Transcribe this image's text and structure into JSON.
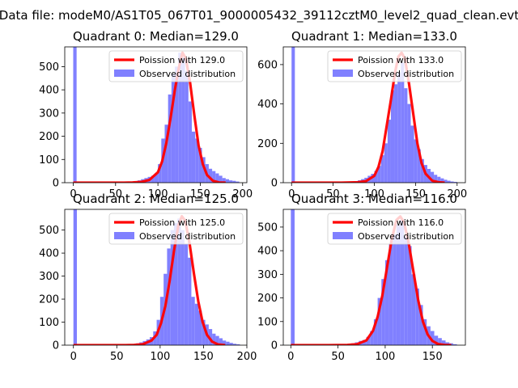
{
  "figure": {
    "suptitle": "Data file: modeM0/AS1T05_067T01_9000005432_39112cztM0_level2_quad_clean.evt"
  },
  "colors": {
    "poisson": "#ff0000",
    "observed": "#8080ff",
    "axes": "#000000"
  },
  "chart_data": [
    {
      "type": "bar",
      "title": "Quadrant 0: Median=129.0",
      "xlabel": "",
      "ylabel": "",
      "xlim": [
        -10,
        205
      ],
      "ylim": [
        0,
        585
      ],
      "xticks": [
        0,
        50,
        100,
        150,
        200
      ],
      "yticks": [
        0,
        100,
        200,
        300,
        400,
        500
      ],
      "grid": false,
      "legend_placement": "top-right",
      "legend": [
        "Poission with 129.0",
        "Observed distribution"
      ],
      "hist_bin_width": 4,
      "hist_x": [
        0,
        72,
        76,
        80,
        84,
        88,
        92,
        96,
        100,
        104,
        108,
        112,
        116,
        120,
        124,
        128,
        132,
        136,
        140,
        144,
        148,
        152,
        156,
        160,
        164,
        168,
        172,
        176,
        180,
        184,
        188,
        192
      ],
      "hist_y": [
        585,
        5,
        10,
        15,
        20,
        25,
        30,
        40,
        80,
        190,
        250,
        380,
        470,
        500,
        560,
        540,
        480,
        350,
        220,
        190,
        150,
        110,
        80,
        60,
        50,
        40,
        30,
        20,
        15,
        10,
        8,
        5
      ],
      "poisson_x": [
        0,
        20,
        40,
        60,
        70,
        80,
        90,
        100,
        105,
        110,
        115,
        120,
        125,
        129,
        133,
        138,
        143,
        148,
        153,
        158,
        165,
        172,
        180
      ],
      "poisson_y": [
        0,
        0,
        0,
        0,
        1,
        3,
        12,
        45,
        92,
        172,
        280,
        400,
        500,
        560,
        535,
        430,
        290,
        160,
        80,
        33,
        8,
        1,
        0
      ],
      "poisson_label": "Poission with 129.0",
      "observed_label": "Observed distribution"
    },
    {
      "type": "bar",
      "title": "Quadrant 1: Median=133.0",
      "xlabel": "",
      "ylabel": "",
      "xlim": [
        -10,
        210
      ],
      "ylim": [
        0,
        690
      ],
      "xticks": [
        0,
        50,
        100,
        150,
        200
      ],
      "yticks": [
        0,
        200,
        400,
        600
      ],
      "grid": false,
      "legend_placement": "top-right",
      "legend": [
        "Poission with 133.0",
        "Observed distribution"
      ],
      "hist_bin_width": 4,
      "hist_x": [
        0,
        72,
        76,
        80,
        84,
        88,
        92,
        96,
        100,
        104,
        108,
        112,
        116,
        120,
        124,
        128,
        132,
        136,
        140,
        144,
        148,
        152,
        156,
        160,
        164,
        168,
        172,
        176,
        180,
        184,
        188,
        192,
        196
      ],
      "hist_y": [
        690,
        4,
        8,
        12,
        18,
        25,
        35,
        45,
        60,
        85,
        140,
        200,
        320,
        470,
        500,
        560,
        610,
        480,
        400,
        290,
        220,
        170,
        120,
        90,
        70,
        55,
        40,
        30,
        22,
        15,
        10,
        6,
        4
      ],
      "poisson_x": [
        0,
        20,
        40,
        60,
        80,
        90,
        100,
        105,
        110,
        115,
        120,
        125,
        129,
        133,
        137,
        142,
        147,
        152,
        157,
        162,
        170,
        178,
        185
      ],
      "poisson_y": [
        0,
        0,
        0,
        0,
        2,
        8,
        35,
        80,
        160,
        290,
        420,
        560,
        640,
        660,
        630,
        500,
        350,
        200,
        100,
        45,
        10,
        2,
        0
      ],
      "poisson_label": "Poission with 133.0",
      "observed_label": "Observed distribution"
    },
    {
      "type": "bar",
      "title": "Quadrant 2: Median=125.0",
      "xlabel": "",
      "ylabel": "",
      "xlim": [
        -10,
        200
      ],
      "ylim": [
        0,
        590
      ],
      "xticks": [
        0,
        50,
        100,
        150,
        200
      ],
      "yticks": [
        0,
        100,
        200,
        300,
        400,
        500
      ],
      "grid": false,
      "legend_placement": "top-right",
      "legend": [
        "Poission with 125.0",
        "Observed distribution"
      ],
      "hist_bin_width": 4,
      "hist_x": [
        0,
        68,
        72,
        76,
        80,
        84,
        88,
        92,
        96,
        100,
        104,
        108,
        112,
        116,
        120,
        124,
        128,
        132,
        136,
        140,
        144,
        148,
        152,
        156,
        160,
        164,
        168,
        172,
        176,
        180,
        184,
        188
      ],
      "hist_y": [
        590,
        4,
        8,
        12,
        18,
        25,
        35,
        60,
        110,
        210,
        310,
        420,
        500,
        530,
        550,
        500,
        440,
        380,
        210,
        180,
        150,
        110,
        90,
        70,
        50,
        40,
        30,
        20,
        15,
        10,
        6,
        4
      ],
      "poisson_x": [
        0,
        20,
        40,
        60,
        70,
        80,
        90,
        96,
        101,
        106,
        111,
        116,
        121,
        125,
        129,
        134,
        139,
        144,
        149,
        154,
        160,
        167,
        175
      ],
      "poisson_y": [
        0,
        0,
        0,
        0,
        1,
        4,
        20,
        45,
        95,
        170,
        280,
        410,
        520,
        560,
        540,
        440,
        310,
        190,
        100,
        45,
        15,
        3,
        0
      ],
      "poisson_label": "Poission with 125.0",
      "observed_label": "Observed distribution"
    },
    {
      "type": "bar",
      "title": "Quadrant 3: Median=116.0",
      "xlabel": "",
      "ylabel": "",
      "xlim": [
        -8,
        185
      ],
      "ylim": [
        0,
        575
      ],
      "xticks": [
        0,
        50,
        100,
        150
      ],
      "yticks": [
        0,
        100,
        200,
        300,
        400,
        500
      ],
      "grid": false,
      "legend_placement": "top-right",
      "legend": [
        "Poission with 116.0",
        "Observed distribution"
      ],
      "hist_bin_width": 4,
      "hist_x": [
        0,
        60,
        64,
        68,
        72,
        76,
        80,
        84,
        88,
        92,
        96,
        100,
        104,
        108,
        112,
        116,
        120,
        124,
        128,
        132,
        136,
        140,
        144,
        148,
        152,
        156,
        160,
        164,
        168,
        172
      ],
      "hist_y": [
        575,
        4,
        8,
        12,
        18,
        22,
        35,
        60,
        110,
        200,
        280,
        360,
        430,
        470,
        510,
        530,
        460,
        420,
        300,
        240,
        170,
        110,
        80,
        60,
        40,
        30,
        20,
        12,
        8,
        4
      ],
      "poisson_x": [
        0,
        20,
        40,
        60,
        70,
        80,
        87,
        92,
        97,
        102,
        107,
        112,
        116,
        120,
        125,
        130,
        135,
        140,
        145,
        150,
        156,
        163,
        170
      ],
      "poisson_y": [
        0,
        0,
        0,
        1,
        4,
        20,
        60,
        120,
        210,
        330,
        450,
        530,
        545,
        520,
        430,
        310,
        190,
        100,
        45,
        18,
        5,
        1,
        0
      ],
      "poisson_label": "Poission with 116.0",
      "observed_label": "Observed distribution"
    }
  ]
}
